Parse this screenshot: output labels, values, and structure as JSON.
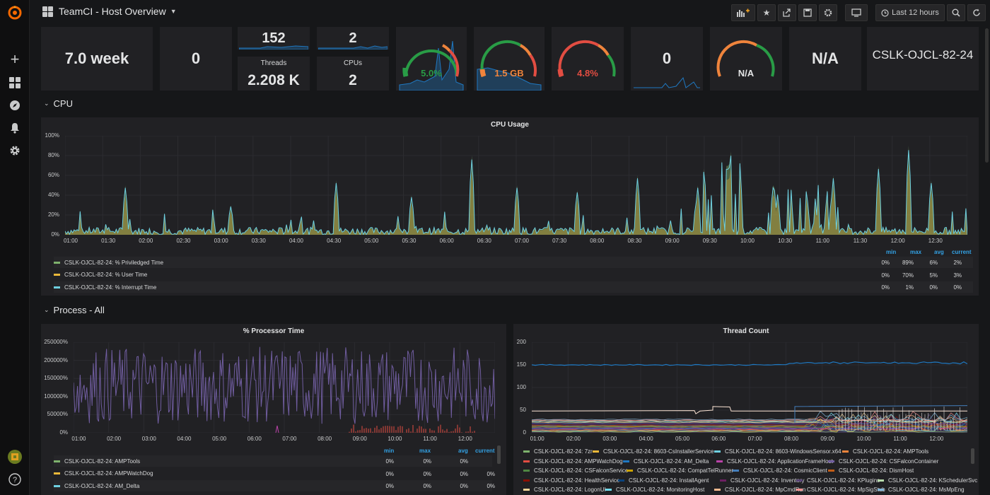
{
  "dashboard": {
    "title": "TeamCI - Host Overview",
    "time_range": "Last 12 hours"
  },
  "sidebar": {
    "icons": [
      "grafana-logo",
      "plus-icon",
      "dashboards-icon",
      "explore-icon",
      "alert-bell-icon",
      "gear-icon",
      "avatar",
      "help-icon"
    ],
    "help_symbol": "?"
  },
  "toolbar": {
    "icons": [
      "add-panel-icon",
      "star-icon",
      "share-icon",
      "save-icon",
      "settings-icon",
      "tv-mode-icon",
      "clock-icon",
      "zoom-out-icon",
      "refresh-icon"
    ]
  },
  "stats": {
    "uptime": "7.0 week",
    "zero1": "0",
    "processes": "152",
    "sessions": "2",
    "threads_label": "Threads",
    "threads": "2.208 K",
    "cpus_label": "CPUs",
    "cpus": "2",
    "cpu_gauge": "5.0%",
    "mem_gauge": "1.5 GB",
    "disk_gauge": "4.8%",
    "zero2": "0",
    "na_gauge": "N/A",
    "na_stat": "N/A",
    "hostname": "CSLK-OJCL-82-24"
  },
  "gauge_levels": {
    "cpu": 0.05,
    "mem": 0.6,
    "disk": 0.048
  },
  "rows": {
    "cpu": "CPU",
    "process": "Process - All"
  },
  "cpu_panel": {
    "title": "CPU Usage",
    "y_ticks": [
      "100%",
      "80%",
      "60%",
      "40%",
      "20%",
      "0%"
    ],
    "x_ticks": [
      "01:00",
      "01:30",
      "02:00",
      "02:30",
      "03:00",
      "03:30",
      "04:00",
      "04:30",
      "05:00",
      "05:30",
      "06:00",
      "06:30",
      "07:00",
      "07:30",
      "08:00",
      "08:30",
      "09:00",
      "09:30",
      "10:00",
      "10:30",
      "11:00",
      "11:30",
      "12:00",
      "12:30"
    ],
    "legend_headers": [
      "min",
      "max",
      "avg",
      "current"
    ],
    "series": [
      {
        "name": "CSLK-OJCL-82-24: % Priviledged Time",
        "color": "#7eb26d",
        "min": "0%",
        "max": "89%",
        "avg": "6%",
        "current": "2%"
      },
      {
        "name": "CSLK-OJCL-82-24: % User Time",
        "color": "#eab839",
        "min": "0%",
        "max": "70%",
        "avg": "5%",
        "current": "3%"
      },
      {
        "name": "CSLK-OJCL-82-24: % Interrupt Time",
        "color": "#6ed0e0",
        "min": "0%",
        "max": "1%",
        "avg": "0%",
        "current": "0%"
      }
    ]
  },
  "proc_panel": {
    "title": "% Processor Time",
    "y_ticks": [
      "250000%",
      "200000%",
      "150000%",
      "100000%",
      "50000%",
      "0%"
    ],
    "x_ticks": [
      "01:00",
      "02:00",
      "03:00",
      "04:00",
      "05:00",
      "06:00",
      "07:00",
      "08:00",
      "09:00",
      "10:00",
      "11:00",
      "12:00"
    ],
    "legend_headers": [
      "min",
      "max",
      "avg",
      "current"
    ],
    "series": [
      {
        "name": "CSLK-OJCL-82-24: AMPTools",
        "color": "#7eb26d",
        "min": "0%",
        "max": "0%",
        "avg": "0%",
        "current": ""
      },
      {
        "name": "CSLK-OJCL-82-24: AMPWatchDog",
        "color": "#eab839",
        "min": "0%",
        "max": "0%",
        "avg": "0%",
        "current": "0%"
      },
      {
        "name": "CSLK-OJCL-82-24: AM_Delta",
        "color": "#6ed0e0",
        "min": "0%",
        "max": "0%",
        "avg": "0%",
        "current": "0%"
      }
    ]
  },
  "thread_panel": {
    "title": "Thread Count",
    "y_ticks": [
      "200",
      "150",
      "100",
      "50",
      "0"
    ],
    "x_ticks": [
      "01:00",
      "02:00",
      "03:00",
      "04:00",
      "05:00",
      "06:00",
      "07:00",
      "08:00",
      "09:00",
      "10:00",
      "11:00",
      "12:00"
    ],
    "legend": [
      {
        "name": "CSLK-OJCL-82-24: 7zr",
        "color": "#7eb26d"
      },
      {
        "name": "CSLK-OJCL-82-24: 8603-CsInstallerService",
        "color": "#eab839"
      },
      {
        "name": "CSLK-OJCL-82-24: 8603-WindowsSensor.x64",
        "color": "#6ed0e0"
      },
      {
        "name": "CSLK-OJCL-82-24: AMPTools",
        "color": "#ef843c"
      },
      {
        "name": "CSLK-OJCL-82-24: AMPWatchDog",
        "color": "#e24d42"
      },
      {
        "name": "CSLK-OJCL-82-24: AM_Delta",
        "color": "#1f78c1"
      },
      {
        "name": "CSLK-OJCL-82-24: ApplicationFrameHost",
        "color": "#ba43a9"
      },
      {
        "name": "CSLK-OJCL-82-24: CSFalconContainer",
        "color": "#705da0"
      },
      {
        "name": "CSLK-OJCL-82-24: CSFalconService",
        "color": "#508642"
      },
      {
        "name": "CSLK-OJCL-82-24: CompatTelRunner",
        "color": "#cca300"
      },
      {
        "name": "CSLK-OJCL-82-24: CosmicClient",
        "color": "#447ebc"
      },
      {
        "name": "CSLK-OJCL-82-24: DismHost",
        "color": "#c15c17"
      },
      {
        "name": "CSLK-OJCL-82-24: HealthService",
        "color": "#890f02"
      },
      {
        "name": "CSLK-OJCL-82-24: InstallAgent",
        "color": "#0a437c"
      },
      {
        "name": "CSLK-OJCL-82-24: Inventory",
        "color": "#6d1f62"
      },
      {
        "name": "CSLK-OJCL-82-24: KPlugins",
        "color": "#584477"
      },
      {
        "name": "CSLK-OJCL-82-24: KSchedulerSvc",
        "color": "#b7dbab"
      },
      {
        "name": "CSLK-OJCL-82-24: LogonUI",
        "color": "#f4d598"
      },
      {
        "name": "CSLK-OJCL-82-24: MonitoringHost",
        "color": "#70dbed"
      },
      {
        "name": "CSLK-OJCL-82-24: MpCmdRun",
        "color": "#f9ba8f"
      },
      {
        "name": "CSLK-OJCL-82-24: MpSigStub",
        "color": "#f29191"
      },
      {
        "name": "CSLK-OJCL-82-24: MsMpEng",
        "color": "#82b5d8"
      }
    ]
  }
}
